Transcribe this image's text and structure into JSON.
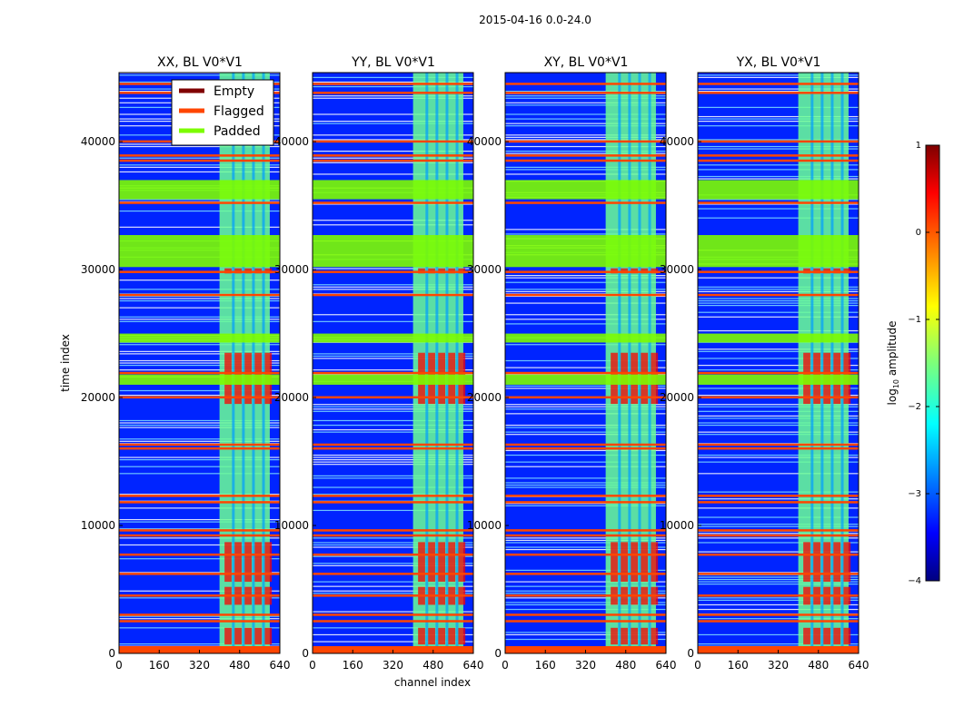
{
  "chart_data": {
    "type": "heatmap",
    "suptitle": "2015-04-16 0.0-24.0",
    "panels": [
      {
        "title": "XX, BL V0*V1"
      },
      {
        "title": "YY, BL V0*V1"
      },
      {
        "title": "XY, BL V0*V1"
      },
      {
        "title": "YX, BL V0*V1"
      }
    ],
    "xlabel": "channel index",
    "ylabel": "time index",
    "xlim": [
      0,
      640
    ],
    "ylim": [
      0,
      45400
    ],
    "xticks": [
      0,
      160,
      320,
      480,
      640
    ],
    "yticks": [
      0,
      10000,
      20000,
      30000,
      40000
    ],
    "legend": [
      {
        "label": "Empty",
        "color": "#800000"
      },
      {
        "label": "Flagged",
        "color": "#ff4500"
      },
      {
        "label": "Padded",
        "color": "#7cfc00"
      }
    ],
    "colorbar": {
      "label": "log10 amplitude",
      "label_main": "log",
      "label_sub": "10",
      "label_rest": " amplitude",
      "range": [
        -4,
        1
      ],
      "ticks": [
        1,
        0,
        -1,
        -2,
        -3,
        -4
      ],
      "tick_labels": [
        "1",
        "0",
        "−1",
        "−2",
        "−3",
        "−4"
      ]
    },
    "signal_channel_range": [
      400,
      600
    ],
    "padded_time_blocks": [
      [
        30200,
        32700
      ],
      [
        35500,
        37000
      ],
      [
        24300,
        25000
      ],
      [
        21000,
        21800
      ]
    ],
    "flagged_time_rows": [
      0,
      2500,
      3000,
      4500,
      6200,
      7700,
      9200,
      9600,
      11800,
      12300,
      16000,
      16300,
      20000,
      21900,
      28000,
      29800,
      35200,
      38500,
      38900,
      40000,
      43800,
      44500
    ],
    "approx_levels": {
      "background": -3.2,
      "signal_band": -1.6,
      "strong_rfi": 0.4
    }
  }
}
